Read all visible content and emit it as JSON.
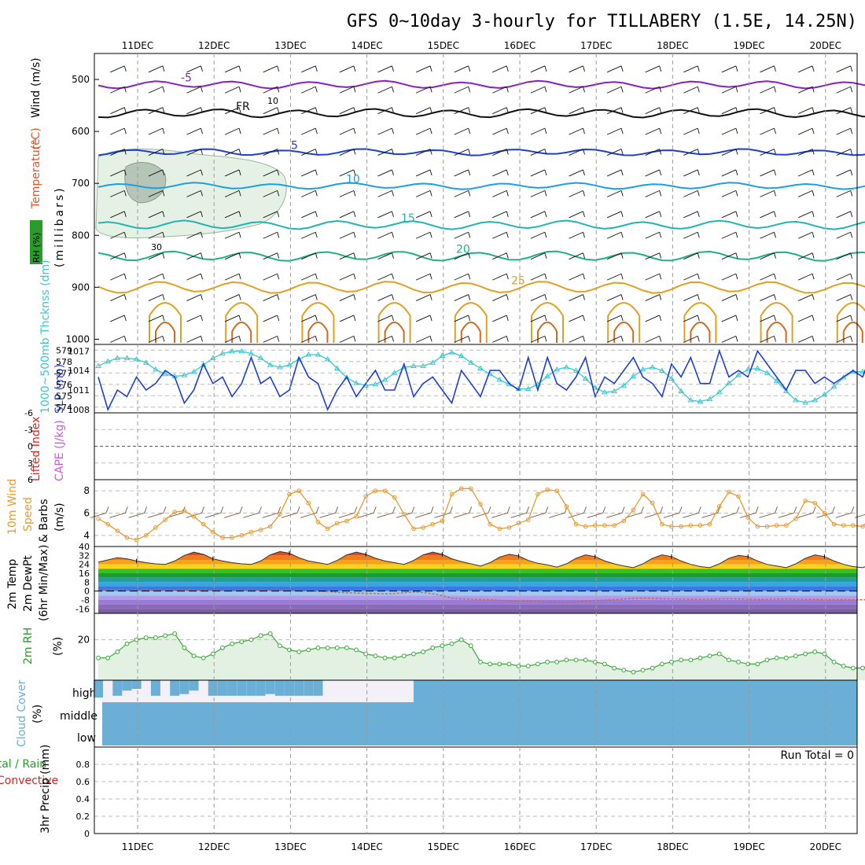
{
  "title": "GFS 0~10day 3-hourly for TILLABERY (1.5E, 14.25N)",
  "date_labels": [
    "11DEC",
    "12DEC",
    "13DEC",
    "14DEC",
    "15DEC",
    "16DEC",
    "17DEC",
    "18DEC",
    "19DEC",
    "20DEC"
  ],
  "colors": {
    "panel_border": "#000000",
    "grid": "#9a9a9a",
    "cyan": "#38c8d0",
    "blue": "#1e3fd0",
    "orange": "#e89a30",
    "green": "#3aa83a",
    "cloud": "#6baed6"
  },
  "chart_data": [
    {
      "type": "contour",
      "name": "upper",
      "labels": {
        "wind": "Wind",
        "wind_unit": "(m/s)",
        "temp": "Temperature",
        "temp_unit": "(°C)",
        "rh": "RH (%)",
        "axis": "(millibars)"
      },
      "pressure_ticks": [
        500,
        600,
        700,
        800,
        900,
        1000
      ],
      "ylim": [
        450,
        1010
      ],
      "temp_isolines": [
        {
          "label": "-5",
          "color": "#8a1fbf",
          "base": 510,
          "amp": 6
        },
        {
          "label": "FR",
          "color": "#111111",
          "base": 565,
          "amp": 7
        },
        {
          "label": "5",
          "color": "#1e3fd0",
          "base": 640,
          "amp": 5
        },
        {
          "label": "10",
          "color": "#1f9ee0",
          "base": 705,
          "amp": 5
        },
        {
          "label": "15",
          "color": "#22b4b4",
          "base": 780,
          "amp": 7
        },
        {
          "label": "20",
          "color": "#20b080",
          "base": 840,
          "amp": 8
        },
        {
          "label": "25",
          "color": "#e0a020",
          "base": 900,
          "amp": 10
        }
      ],
      "rh_contours": [
        "10",
        "30"
      ]
    },
    {
      "type": "line",
      "name": "slp_thickness",
      "labels": {
        "thickness": "1000~500mb Thcknss (dm)",
        "slp": "SLP (mb)"
      },
      "left_ticks": [
        574,
        575,
        576,
        577,
        578,
        579
      ],
      "left_lim": [
        573.5,
        579.5
      ],
      "right_ticks": [
        1008,
        1011,
        1014,
        1017
      ],
      "right_lim": [
        1007.5,
        1018
      ],
      "thickness": [
        577.6,
        578.0,
        578.3,
        578.3,
        578.2,
        577.9,
        577.3,
        576.9,
        576.7,
        576.8,
        577.1,
        577.7,
        578.3,
        578.7,
        578.9,
        578.9,
        578.7,
        578.3,
        577.7,
        577.5,
        577.7,
        578.2,
        578.6,
        578.6,
        578.2,
        577.4,
        576.6,
        576.1,
        575.9,
        576.0,
        576.4,
        577.0,
        577.5,
        577.6,
        577.6,
        577.9,
        578.5,
        578.8,
        578.5,
        577.9,
        577.4,
        576.9,
        576.4,
        576.0,
        575.6,
        575.6,
        576.0,
        576.7,
        577.3,
        577.5,
        577.2,
        576.5,
        575.7,
        575.3,
        575.4,
        575.9,
        576.7,
        577.3,
        577.5,
        577.2,
        576.5,
        575.4,
        574.6,
        574.5,
        574.7,
        575.3,
        576.1,
        576.8,
        577.3,
        577.4,
        577.0,
        576.3,
        575.4,
        574.6,
        574.4,
        574.6,
        575.1,
        575.8,
        576.6,
        577.1,
        577.1,
        576.6,
        575.8,
        575.0,
        574.7,
        574.6,
        574.8,
        575.5,
        576.0,
        576.1,
        575.5,
        574.6,
        573.9
      ],
      "slp": [
        1013,
        1008,
        1011,
        1010,
        1013,
        1011,
        1012,
        1014,
        1013,
        1009,
        1011,
        1015,
        1012,
        1013,
        1010,
        1012,
        1016,
        1012,
        1013,
        1010,
        1011,
        1016,
        1013,
        1012,
        1008,
        1011,
        1013,
        1010,
        1012,
        1014,
        1011,
        1011,
        1015,
        1010,
        1012,
        1013,
        1011,
        1009,
        1014,
        1012,
        1010,
        1014,
        1014,
        1012,
        1011,
        1016,
        1011,
        1016,
        1012,
        1011,
        1013,
        1016,
        1010,
        1013,
        1012,
        1014,
        1016,
        1013,
        1012,
        1010,
        1015,
        1013,
        1016,
        1012,
        1012,
        1017,
        1013,
        1014,
        1013,
        1017,
        1015,
        1013,
        1011,
        1014,
        1014,
        1012,
        1013,
        1012,
        1013,
        1014,
        1013,
        1017,
        1014,
        1014,
        1011,
        1016,
        1013,
        1011,
        1014,
        1016,
        1015,
        1016,
        1016
      ]
    },
    {
      "type": "line",
      "name": "cape_li",
      "labels": {
        "li": "Lifted Index",
        "cape": "CAPE (J/kg)"
      },
      "left_ticks": [
        "-6",
        "-3",
        "0",
        "3",
        "6"
      ],
      "left_lim": [
        -6,
        6
      ],
      "li_zero": 0
    },
    {
      "type": "line",
      "name": "wind10m",
      "labels": {
        "title": "10m Wind",
        "speed": "Speed",
        "barbs": "& Barbs",
        "unit": "(m/s)"
      },
      "ticks": [
        4,
        6,
        8
      ],
      "ylim": [
        3,
        9
      ],
      "speed": [
        5.5,
        5.0,
        4.4,
        3.8,
        3.6,
        4.0,
        4.7,
        5.4,
        6.1,
        6.2,
        5.7,
        5.0,
        4.3,
        3.8,
        3.8,
        4.0,
        4.3,
        4.5,
        4.8,
        5.9,
        7.7,
        8.0,
        6.9,
        5.2,
        4.6,
        5.1,
        5.3,
        5.7,
        7.5,
        8.0,
        8.0,
        7.4,
        5.9,
        4.6,
        4.7,
        5.0,
        5.3,
        7.7,
        8.2,
        8.2,
        6.8,
        5.0,
        4.6,
        4.7,
        5.1,
        5.4,
        7.7,
        8.1,
        8.0,
        6.6,
        5.0,
        4.8,
        4.9,
        4.9,
        4.9,
        5.3,
        6.3,
        7.7,
        6.9,
        5.0,
        4.8,
        4.8,
        4.9,
        4.9,
        5.0,
        6.6,
        7.9,
        7.5,
        5.6,
        4.8,
        4.8,
        4.9,
        4.9,
        5.5,
        7.1,
        6.9,
        6.0,
        5.0,
        4.9,
        4.9,
        4.8,
        5.7,
        7.6,
        7.8,
        6.3,
        4.8,
        4.7,
        5.0,
        5.1,
        5.2,
        5.3,
        5.4,
        6.0
      ]
    },
    {
      "type": "area",
      "name": "temp2m",
      "labels": {
        "temp": "2m Temp",
        "dew": "2m DewPt",
        "minmax": "(6hr Min/Max)",
        "unit": "(°C)"
      },
      "ticks": [
        -16,
        -8,
        0,
        8,
        16,
        24,
        32,
        40
      ],
      "ylim": [
        -20,
        40
      ],
      "temp": [
        26.0,
        28.0,
        30.0,
        29.0,
        27.0,
        25.5,
        24.5,
        24.0,
        27.0,
        32.0,
        35.0,
        33.0,
        29.0,
        27.0,
        25.5,
        24.5,
        24.0,
        27.0,
        32.5,
        35.5,
        34.0,
        30.0,
        27.0,
        25.5,
        24.0,
        27.5,
        32.5,
        35.0,
        33.0,
        29.5,
        27.0,
        25.5,
        24.0,
        27.5,
        32.5,
        35.0,
        33.0,
        29.0,
        26.5,
        24.5,
        22.5,
        25.5,
        30.5,
        33.0,
        31.5,
        27.5,
        25.0,
        23.5,
        21.5,
        24.5,
        29.5,
        32.5,
        31.0,
        27.0,
        24.5,
        22.5,
        21.0,
        24.5,
        29.5,
        32.5,
        31.0,
        27.0,
        24.0,
        22.0,
        21.0,
        24.5,
        29.5,
        32.0,
        31.0,
        27.0,
        24.0,
        22.5,
        21.0,
        24.5,
        29.5,
        32.5,
        31.0,
        27.0,
        24.0,
        22.0,
        21.0,
        24.5,
        29.5,
        32.5,
        31.5,
        27.5,
        24.0,
        22.0,
        21.0,
        20.5,
        20.0,
        19.5,
        19.0
      ],
      "dew": [
        0.2,
        1.0,
        1.5,
        1.5,
        1.2,
        1.0,
        0.8,
        0.5,
        0.6,
        1.0,
        1.1,
        1.0,
        0.5,
        0.3,
        0.2,
        0.4,
        0.5,
        0.6,
        0.6,
        0.5,
        0.4,
        0.2,
        0.0,
        -0.2,
        -0.5,
        -1.0,
        -1.5,
        -1.8,
        -2.0,
        -2.2,
        -2.5,
        -2.3,
        -1.5,
        -0.8,
        -1.2,
        -2.5,
        -4.0,
        -6.5,
        -7.0,
        -7.2,
        -7.6,
        -7.8,
        -8.2,
        -8.6,
        -9.0,
        -9.2,
        -9.5,
        -9.6,
        -9.8,
        -10.0,
        -9.6,
        -9.0,
        -8.5,
        -8.0,
        -7.8,
        -7.0,
        -6.5,
        -6.2,
        -6.5,
        -6.8,
        -7.0,
        -7.2,
        -7.3,
        -7.4,
        -7.2,
        -7.0,
        -6.8,
        -7.0,
        -7.2,
        -7.5,
        -7.4,
        -7.2,
        -7.0,
        -7.2,
        -7.4,
        -7.5,
        -7.6,
        -7.8,
        -7.8,
        -7.8,
        -7.8,
        -7.6,
        -7.6,
        -7.6,
        -7.8,
        -7.8,
        -7.8,
        -7.6,
        -7.6,
        -7.5,
        -7.6,
        -7.6,
        -7.6
      ]
    },
    {
      "type": "area",
      "name": "rh2m",
      "labels": {
        "title": "2m RH",
        "unit": "(%)"
      },
      "ticks": [
        20
      ],
      "ylim": [
        0,
        33
      ],
      "values": [
        11,
        11,
        14,
        18,
        20,
        21,
        21,
        22,
        23,
        16,
        12,
        11,
        13,
        16,
        18,
        19,
        20,
        22,
        23,
        17,
        15,
        14,
        15,
        16,
        16,
        16,
        16,
        15,
        13,
        12,
        11,
        11,
        12,
        13,
        14,
        16,
        17,
        18,
        20,
        17,
        9,
        8,
        8,
        8,
        7,
        7,
        8,
        9,
        9,
        10,
        10,
        10,
        9,
        8,
        6,
        5,
        4,
        5,
        6,
        8,
        9,
        10,
        10,
        11,
        12,
        13,
        10,
        9,
        8,
        8,
        10,
        11,
        11,
        12,
        13,
        14,
        13,
        9,
        7,
        6,
        6,
        8,
        9,
        10,
        11,
        12,
        13,
        10,
        8,
        7,
        5,
        6,
        8,
        9,
        10,
        11,
        12,
        13,
        14,
        10,
        8,
        6,
        5,
        7,
        9,
        10,
        11,
        12,
        13,
        14
      ]
    },
    {
      "type": "bar",
      "name": "cloud",
      "labels": {
        "title": "Cloud Cover",
        "unit": "(%)",
        "high": "high",
        "middle": "middle",
        "low": "low"
      },
      "high": [
        1.0,
        0.0,
        0.9,
        0.6,
        0.5,
        0.0,
        0.9,
        0.0,
        0.9,
        0.8,
        0.6,
        0.0,
        0.9,
        0.9,
        0.9,
        0.9,
        0.9,
        0.9,
        0.8,
        0.9,
        0.9,
        0.9,
        0.9,
        0.9,
        0.0,
        0.0,
        0.0,
        0.0,
        0.0,
        0.0,
        0.0,
        0.0,
        0.0,
        0.0,
        0.0,
        0.0,
        0.0,
        0.0,
        0.0,
        0.0,
        0.0,
        0.0,
        0.0,
        0.0,
        0.0,
        0.0,
        0.0,
        0.0,
        0.0,
        0.0,
        0.0,
        0.0,
        0.0,
        0.0,
        0.0,
        0.0,
        0.0,
        0.0,
        0.0,
        0.0,
        0.0,
        0.0,
        0.0,
        0.0,
        0.0,
        0.0,
        0.0,
        0.0,
        0.0,
        0.0,
        0.0,
        0.0,
        0.0,
        0.0,
        0.0,
        0.0,
        0.0,
        0.0,
        0.0,
        0.0,
        0.0,
        0.0,
        0.0,
        0.0,
        0.0,
        0.0,
        0.0,
        0.0,
        0.0,
        0.0,
        0.0,
        0.0,
        0.0
      ]
    },
    {
      "type": "bar",
      "name": "precip",
      "labels": {
        "total": "Total / Rain",
        "conv": "Convective",
        "title": "3hr Precip (mm)",
        "run_total": "Run Total = 0"
      },
      "ticks": [
        "0",
        "0.2",
        "0.4",
        "0.6",
        "0.8"
      ],
      "ylim": [
        0,
        1
      ],
      "values": []
    }
  ]
}
